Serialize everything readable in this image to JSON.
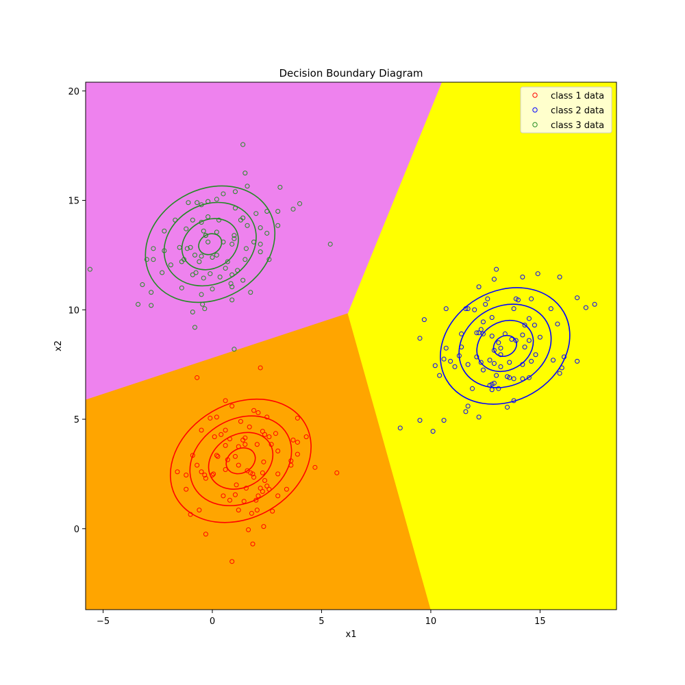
{
  "chart_data": {
    "type": "scatter",
    "title": "Decision Boundary Diagram",
    "xlabel": "x1",
    "ylabel": "x2",
    "xlim": [
      -5.8,
      18.5
    ],
    "ylim": [
      -3.7,
      20.4
    ],
    "xticks": [
      -5,
      0,
      5,
      10,
      15
    ],
    "yticks": [
      0,
      5,
      10,
      15,
      20
    ],
    "grid": false,
    "legend_position": "top-right",
    "regions": [
      {
        "name": "class 1 region",
        "color": "#ffa500",
        "polygon": [
          [
            -5.8,
            5.9
          ],
          [
            6.2,
            9.85
          ],
          [
            10.0,
            -3.7
          ],
          [
            -5.8,
            -3.7
          ]
        ]
      },
      {
        "name": "class 2 region",
        "color": "#ffff00",
        "polygon": [
          [
            6.2,
            9.85
          ],
          [
            10.5,
            20.4
          ],
          [
            18.5,
            20.4
          ],
          [
            18.5,
            -3.7
          ],
          [
            10.0,
            -3.7
          ]
        ]
      },
      {
        "name": "class 3 region",
        "color": "#ee82ee",
        "polygon": [
          [
            -5.8,
            5.9
          ],
          [
            -5.8,
            20.4
          ],
          [
            10.5,
            20.4
          ],
          [
            6.2,
            9.85
          ]
        ]
      }
    ],
    "series": [
      {
        "name": "class 1 data",
        "color": "#ff0000",
        "mean": [
          1.3,
          3.1
        ],
        "contours": [
          {
            "rx": 0.7,
            "ry": 0.55
          },
          {
            "rx": 1.55,
            "ry": 1.2
          },
          {
            "rx": 2.45,
            "ry": 1.9
          },
          {
            "rx": 3.4,
            "ry": 2.6
          }
        ],
        "contour_angle": 30,
        "points": [
          [
            -0.7,
            6.9
          ],
          [
            2.2,
            7.35
          ],
          [
            0.6,
            5.85
          ],
          [
            -0.1,
            5.05
          ],
          [
            0.2,
            5.1
          ],
          [
            0.9,
            5.6
          ],
          [
            1.9,
            5.4
          ],
          [
            2.1,
            5.3
          ],
          [
            1.3,
            4.9
          ],
          [
            2.5,
            5.1
          ],
          [
            3.9,
            5.05
          ],
          [
            -0.5,
            4.5
          ],
          [
            0.6,
            4.5
          ],
          [
            1.7,
            4.65
          ],
          [
            2.3,
            4.45
          ],
          [
            0.1,
            4.2
          ],
          [
            0.4,
            4.3
          ],
          [
            1.4,
            4.05
          ],
          [
            1.5,
            4.15
          ],
          [
            2.6,
            4.2
          ],
          [
            2.4,
            4.3
          ],
          [
            2.9,
            4.35
          ],
          [
            4.3,
            4.2
          ],
          [
            0.8,
            4.1
          ],
          [
            3.7,
            4.05
          ],
          [
            3.9,
            3.95
          ],
          [
            -0.9,
            3.35
          ],
          [
            0.2,
            3.35
          ],
          [
            0.6,
            3.8
          ],
          [
            1.2,
            3.75
          ],
          [
            1.5,
            3.85
          ],
          [
            2.05,
            3.85
          ],
          [
            2.7,
            3.85
          ],
          [
            3.0,
            3.55
          ],
          [
            0.25,
            3.3
          ],
          [
            3.6,
            3.1
          ],
          [
            0.7,
            3.15
          ],
          [
            1.05,
            3.3
          ],
          [
            2.35,
            3.05
          ],
          [
            1.6,
            2.65
          ],
          [
            1.75,
            2.55
          ],
          [
            3.6,
            2.9
          ],
          [
            -0.7,
            2.9
          ],
          [
            0.05,
            2.5
          ],
          [
            0.6,
            2.7
          ],
          [
            -0.5,
            2.6
          ],
          [
            0.0,
            2.45
          ],
          [
            -1.6,
            2.6
          ],
          [
            -0.3,
            2.3
          ],
          [
            1.9,
            2.35
          ],
          [
            3.0,
            2.5
          ],
          [
            3.9,
            3.4
          ],
          [
            4.7,
            2.8
          ],
          [
            5.7,
            2.55
          ],
          [
            -0.35,
            2.45
          ],
          [
            1.2,
            2.9
          ],
          [
            1.85,
            2.5
          ],
          [
            2.3,
            2.55
          ],
          [
            2.2,
            1.85
          ],
          [
            0.5,
            1.5
          ],
          [
            1.05,
            1.55
          ],
          [
            1.55,
            1.85
          ],
          [
            2.3,
            1.7
          ],
          [
            2.6,
            1.8
          ],
          [
            3.0,
            1.5
          ],
          [
            3.4,
            1.8
          ],
          [
            -1.2,
            1.8
          ],
          [
            -1.2,
            2.45
          ],
          [
            1.45,
            1.25
          ],
          [
            0.8,
            1.3
          ],
          [
            1.1,
            2.0
          ],
          [
            2.1,
            1.5
          ],
          [
            2.4,
            2.2
          ],
          [
            2.5,
            1.95
          ],
          [
            -0.6,
            0.85
          ],
          [
            -1.0,
            0.65
          ],
          [
            1.2,
            0.85
          ],
          [
            2.05,
            0.85
          ],
          [
            2.75,
            0.8
          ],
          [
            1.8,
            0.7
          ],
          [
            2.35,
            0.1
          ],
          [
            1.65,
            -0.05
          ],
          [
            1.85,
            -0.7
          ],
          [
            -0.3,
            -0.25
          ],
          [
            0.9,
            -1.5
          ],
          [
            2.0,
            1.3
          ]
        ]
      },
      {
        "name": "class 2 data",
        "color": "#0000ff",
        "mean": [
          13.4,
          8.35
        ],
        "contours": [
          {
            "rx": 0.55,
            "ry": 0.45
          },
          {
            "rx": 1.35,
            "ry": 1.1
          },
          {
            "rx": 2.2,
            "ry": 1.8
          },
          {
            "rx": 3.1,
            "ry": 2.5
          }
        ],
        "contour_angle": 30,
        "points": [
          [
            13.0,
            11.85
          ],
          [
            14.9,
            11.65
          ],
          [
            15.9,
            11.5
          ],
          [
            14.2,
            11.5
          ],
          [
            12.9,
            11.4
          ],
          [
            12.2,
            11.05
          ],
          [
            14.6,
            10.5
          ],
          [
            13.9,
            10.5
          ],
          [
            12.6,
            10.5
          ],
          [
            16.7,
            10.55
          ],
          [
            17.5,
            10.25
          ],
          [
            17.1,
            10.1
          ],
          [
            14.0,
            10.45
          ],
          [
            12.5,
            10.25
          ],
          [
            11.7,
            10.05
          ],
          [
            10.7,
            10.05
          ],
          [
            12.0,
            10.0
          ],
          [
            11.6,
            10.05
          ],
          [
            13.8,
            10.05
          ],
          [
            15.5,
            10.05
          ],
          [
            14.5,
            9.6
          ],
          [
            12.4,
            9.45
          ],
          [
            12.8,
            9.65
          ],
          [
            14.3,
            9.3
          ],
          [
            15.8,
            9.35
          ],
          [
            9.7,
            9.55
          ],
          [
            12.2,
            8.95
          ],
          [
            12.3,
            9.1
          ],
          [
            12.4,
            8.9
          ],
          [
            13.4,
            8.9
          ],
          [
            14.2,
            8.85
          ],
          [
            12.1,
            8.95
          ],
          [
            11.4,
            8.9
          ],
          [
            12.8,
            8.8
          ],
          [
            15.0,
            8.75
          ],
          [
            14.75,
            9.3
          ],
          [
            9.5,
            8.7
          ],
          [
            13.1,
            8.5
          ],
          [
            13.7,
            8.65
          ],
          [
            13.2,
            8.25
          ],
          [
            13.9,
            8.6
          ],
          [
            14.5,
            8.6
          ],
          [
            14.3,
            8.3
          ],
          [
            10.7,
            8.25
          ],
          [
            12.9,
            8.15
          ],
          [
            11.4,
            8.3
          ],
          [
            11.3,
            7.9
          ],
          [
            12.1,
            7.85
          ],
          [
            13.2,
            7.95
          ],
          [
            14.8,
            7.95
          ],
          [
            15.6,
            7.7
          ],
          [
            16.1,
            7.85
          ],
          [
            16.7,
            7.65
          ],
          [
            10.6,
            7.75
          ],
          [
            10.9,
            7.65
          ],
          [
            11.1,
            7.4
          ],
          [
            12.3,
            7.6
          ],
          [
            12.7,
            7.7
          ],
          [
            12.9,
            7.55
          ],
          [
            13.6,
            7.6
          ],
          [
            14.2,
            7.5
          ],
          [
            14.6,
            7.65
          ],
          [
            13.2,
            7.4
          ],
          [
            10.4,
            7.0
          ],
          [
            10.2,
            7.45
          ],
          [
            11.7,
            7.5
          ],
          [
            12.4,
            7.25
          ],
          [
            13.0,
            7.0
          ],
          [
            13.5,
            6.95
          ],
          [
            14.2,
            6.85
          ],
          [
            14.5,
            6.9
          ],
          [
            16.0,
            7.35
          ],
          [
            15.9,
            7.1
          ],
          [
            12.8,
            6.6
          ],
          [
            12.9,
            6.65
          ],
          [
            12.7,
            6.55
          ],
          [
            13.1,
            6.4
          ],
          [
            12.8,
            6.35
          ],
          [
            11.9,
            6.4
          ],
          [
            13.6,
            6.9
          ],
          [
            13.8,
            6.85
          ],
          [
            11.7,
            5.6
          ],
          [
            11.6,
            5.35
          ],
          [
            13.5,
            5.55
          ],
          [
            12.2,
            5.1
          ],
          [
            13.8,
            5.85
          ],
          [
            8.6,
            4.6
          ],
          [
            9.5,
            4.95
          ],
          [
            10.1,
            4.45
          ],
          [
            10.6,
            4.95
          ]
        ]
      },
      {
        "name": "class 3 data",
        "color": "#228b22",
        "mean": [
          -0.1,
          13.0
        ],
        "contours": [
          {
            "rx": 0.55,
            "ry": 0.45
          },
          {
            "rx": 1.35,
            "ry": 1.1
          },
          {
            "rx": 2.2,
            "ry": 1.8
          },
          {
            "rx": 3.1,
            "ry": 2.5
          }
        ],
        "contour_angle": 30,
        "points": [
          [
            1.4,
            17.55
          ],
          [
            1.5,
            16.25
          ],
          [
            1.6,
            15.65
          ],
          [
            3.1,
            15.6
          ],
          [
            1.05,
            15.4
          ],
          [
            0.5,
            15.3
          ],
          [
            -0.2,
            14.95
          ],
          [
            0.2,
            15.05
          ],
          [
            -1.1,
            14.9
          ],
          [
            -0.7,
            14.9
          ],
          [
            -0.5,
            14.8
          ],
          [
            2.5,
            14.5
          ],
          [
            3.0,
            14.5
          ],
          [
            3.7,
            14.6
          ],
          [
            4.0,
            14.85
          ],
          [
            1.05,
            14.65
          ],
          [
            -0.2,
            14.25
          ],
          [
            -0.5,
            14.0
          ],
          [
            -0.9,
            14.1
          ],
          [
            0.3,
            14.1
          ],
          [
            1.3,
            14.1
          ],
          [
            1.4,
            14.2
          ],
          [
            2.0,
            14.4
          ],
          [
            -1.7,
            14.1
          ],
          [
            -2.2,
            13.6
          ],
          [
            -1.2,
            13.7
          ],
          [
            -0.3,
            13.4
          ],
          [
            0.2,
            13.55
          ],
          [
            1.0,
            13.4
          ],
          [
            1.6,
            13.85
          ],
          [
            2.2,
            13.75
          ],
          [
            2.5,
            13.5
          ],
          [
            -0.4,
            13.6
          ],
          [
            -0.3,
            13.4
          ],
          [
            -0.2,
            13.1
          ],
          [
            0.5,
            13.1
          ],
          [
            1.0,
            13.25
          ],
          [
            1.9,
            13.1
          ],
          [
            2.2,
            13.0
          ],
          [
            3.0,
            13.85
          ],
          [
            -1.5,
            12.85
          ],
          [
            -1.15,
            12.8
          ],
          [
            -1.0,
            12.85
          ],
          [
            0.9,
            13.0
          ],
          [
            1.55,
            12.8
          ],
          [
            -2.7,
            12.8
          ],
          [
            -2.2,
            12.7
          ],
          [
            -1.3,
            12.3
          ],
          [
            -0.8,
            12.5
          ],
          [
            -0.5,
            12.45
          ],
          [
            0.0,
            12.4
          ],
          [
            0.2,
            12.5
          ],
          [
            0.7,
            12.2
          ],
          [
            1.5,
            12.3
          ],
          [
            2.2,
            12.65
          ],
          [
            -3.0,
            12.3
          ],
          [
            -2.7,
            12.3
          ],
          [
            -1.4,
            12.2
          ],
          [
            -0.6,
            12.2
          ],
          [
            -1.9,
            12.05
          ],
          [
            0.6,
            11.9
          ],
          [
            1.15,
            11.8
          ],
          [
            2.6,
            12.3
          ],
          [
            5.4,
            13.0
          ],
          [
            -0.75,
            11.7
          ],
          [
            -0.9,
            11.6
          ],
          [
            -0.4,
            11.45
          ],
          [
            -0.1,
            11.65
          ],
          [
            -2.3,
            11.7
          ],
          [
            0.35,
            11.5
          ],
          [
            0.9,
            11.6
          ],
          [
            1.4,
            11.35
          ],
          [
            -1.4,
            11.0
          ],
          [
            0.85,
            11.2
          ],
          [
            0.9,
            11.05
          ],
          [
            1.75,
            10.8
          ],
          [
            -3.2,
            11.15
          ],
          [
            -2.8,
            10.8
          ],
          [
            0.0,
            10.95
          ],
          [
            -0.5,
            10.7
          ],
          [
            -0.45,
            10.25
          ],
          [
            -0.35,
            10.05
          ],
          [
            0.9,
            10.45
          ],
          [
            -3.4,
            10.25
          ],
          [
            -2.8,
            10.2
          ],
          [
            -0.9,
            9.9
          ],
          [
            -0.8,
            9.2
          ],
          [
            1.0,
            8.2
          ],
          [
            -5.6,
            11.85
          ]
        ]
      }
    ]
  }
}
